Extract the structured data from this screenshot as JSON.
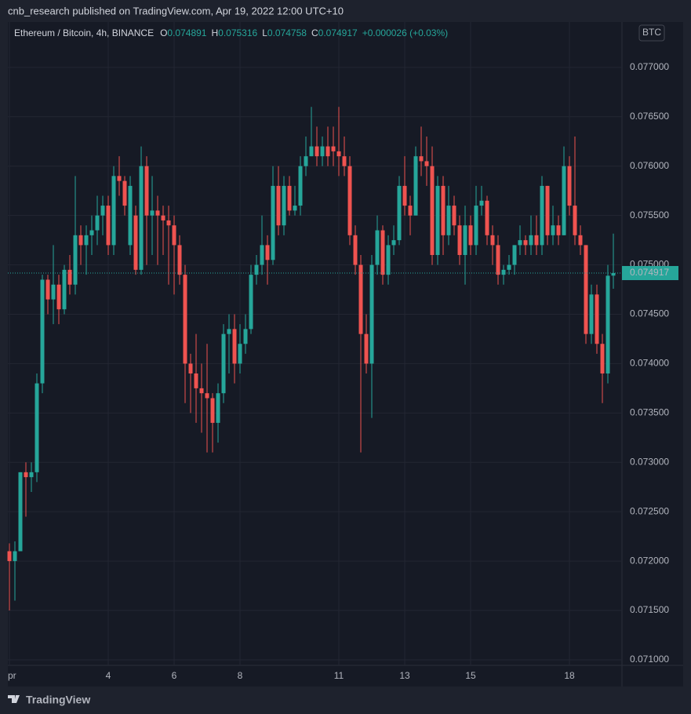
{
  "header": "cnb_research published on TradingView.com, Apr 19, 2022 12:00 UTC+10",
  "footer": "TradingView",
  "chart_data": {
    "type": "candlestick",
    "symbol": "Ethereum / Bitcoin, 4h, BINANCE",
    "legend_keys": [
      "O",
      "H",
      "L",
      "C"
    ],
    "change": "+0.000026 (+0.03%)",
    "currency": "BTC",
    "up_color": "#26a69a",
    "down_color": "#ef5350",
    "grid": true,
    "open": [
      0.0721,
      0.072,
      0.0721,
      0.0729,
      0.07285,
      0.0729,
      0.0738,
      0.07485,
      0.07465,
      0.0748,
      0.07455,
      0.07495,
      0.0748,
      0.0753,
      0.0752,
      0.0753,
      0.07535,
      0.0755,
      0.0756,
      0.0752,
      0.0759,
      0.07585,
      0.0752,
      0.0755,
      0.07495,
      0.076,
      0.0755,
      0.07555,
      0.0755,
      0.07545,
      0.0754,
      0.0752,
      0.0749,
      0.074,
      0.0739,
      0.07375,
      0.0737,
      0.07365,
      0.0734,
      0.0737,
      0.0743,
      0.07435,
      0.074,
      0.0742,
      0.07435,
      0.0749,
      0.075,
      0.0752,
      0.07505,
      0.0758,
      0.0754,
      0.0758,
      0.07555,
      0.0756,
      0.076,
      0.0761,
      0.0762,
      0.0761,
      0.0762,
      0.0762,
      0.07615,
      0.0761,
      0.076,
      0.0753,
      0.075,
      0.0743,
      0.074,
      0.075,
      0.07535,
      0.0749,
      0.0752,
      0.07525,
      0.0758,
      0.0756,
      0.0755,
      0.0761,
      0.07605,
      0.076,
      0.0751,
      0.0758,
      0.0753,
      0.0756,
      0.0754,
      0.0751,
      0.0754,
      0.0752,
      0.0756,
      0.07565,
      0.0753,
      0.0752,
      0.0749,
      0.07495,
      0.075,
      0.0752,
      0.07525,
      0.0752,
      0.0753,
      0.0752,
      0.0758,
      0.0753,
      0.0754,
      0.0753,
      0.076,
      0.0756,
      0.0753,
      0.0752,
      0.0743,
      0.0747,
      0.0742,
      0.0739,
      0.074891
    ],
    "high": [
      0.07218,
      0.0722,
      0.0729,
      0.073,
      0.073,
      0.0739,
      0.0749,
      0.0749,
      0.0752,
      0.0749,
      0.075,
      0.0751,
      0.0759,
      0.0754,
      0.0754,
      0.0755,
      0.0757,
      0.0757,
      0.0757,
      0.076,
      0.0761,
      0.0759,
      0.0759,
      0.0756,
      0.0762,
      0.0761,
      0.0759,
      0.0757,
      0.0756,
      0.0756,
      0.0755,
      0.0753,
      0.075,
      0.0741,
      0.0743,
      0.074,
      0.0742,
      0.0737,
      0.0738,
      0.0744,
      0.0745,
      0.0745,
      0.0744,
      0.0745,
      0.075,
      0.0751,
      0.0755,
      0.0753,
      0.076,
      0.076,
      0.0759,
      0.0759,
      0.0758,
      0.0761,
      0.0763,
      0.0766,
      0.0764,
      0.0763,
      0.0764,
      0.0764,
      0.0766,
      0.0763,
      0.0761,
      0.0754,
      0.0751,
      0.0745,
      0.0751,
      0.0755,
      0.0754,
      0.0753,
      0.0754,
      0.0759,
      0.0761,
      0.0757,
      0.0762,
      0.0764,
      0.0763,
      0.0762,
      0.0759,
      0.0759,
      0.0758,
      0.0757,
      0.0755,
      0.0756,
      0.0755,
      0.0758,
      0.0758,
      0.0757,
      0.0754,
      0.0753,
      0.075,
      0.0751,
      0.0752,
      0.0754,
      0.0753,
      0.0755,
      0.0755,
      0.0759,
      0.0758,
      0.0756,
      0.0755,
      0.0762,
      0.0761,
      0.0763,
      0.0754,
      0.0752,
      0.0748,
      0.0748,
      0.0743,
      0.075,
      0.075316
    ],
    "low": [
      0.0715,
      0.0716,
      0.0721,
      0.07245,
      0.0727,
      0.0728,
      0.0737,
      0.0745,
      0.0744,
      0.0744,
      0.0745,
      0.0747,
      0.0747,
      0.075,
      0.0749,
      0.0751,
      0.0752,
      0.0753,
      0.0751,
      0.0751,
      0.0757,
      0.0755,
      0.0751,
      0.0749,
      0.0749,
      0.075,
      0.0751,
      0.075,
      0.0751,
      0.0748,
      0.0747,
      0.0748,
      0.0736,
      0.0735,
      0.0734,
      0.0733,
      0.0731,
      0.0731,
      0.0732,
      0.0736,
      0.0739,
      0.0738,
      0.0739,
      0.0741,
      0.0743,
      0.0748,
      0.0749,
      0.0748,
      0.075,
      0.0753,
      0.0753,
      0.0755,
      0.0755,
      0.0755,
      0.0759,
      0.0761,
      0.076,
      0.076,
      0.076,
      0.076,
      0.0759,
      0.0759,
      0.0752,
      0.0749,
      0.0731,
      0.0739,
      0.07345,
      0.0749,
      0.0748,
      0.0748,
      0.0751,
      0.0752,
      0.0755,
      0.0753,
      0.0755,
      0.0759,
      0.0758,
      0.075,
      0.075,
      0.0751,
      0.0752,
      0.0753,
      0.075,
      0.0748,
      0.0751,
      0.0751,
      0.0755,
      0.0752,
      0.075,
      0.0748,
      0.0748,
      0.0749,
      0.0749,
      0.0751,
      0.0751,
      0.0751,
      0.0751,
      0.0751,
      0.0752,
      0.0752,
      0.0752,
      0.0753,
      0.0755,
      0.0752,
      0.0751,
      0.0742,
      0.0742,
      0.0741,
      0.0736,
      0.0738,
      0.074758
    ],
    "close": [
      0.072,
      0.0721,
      0.0729,
      0.07285,
      0.0729,
      0.0738,
      0.07485,
      0.07465,
      0.0748,
      0.07455,
      0.07495,
      0.0748,
      0.0753,
      0.0752,
      0.0753,
      0.07535,
      0.0755,
      0.0756,
      0.0752,
      0.0759,
      0.07585,
      0.0756,
      0.0758,
      0.07495,
      0.076,
      0.0755,
      0.07555,
      0.0755,
      0.07545,
      0.0754,
      0.0752,
      0.0749,
      0.074,
      0.0739,
      0.07375,
      0.0737,
      0.07365,
      0.0734,
      0.0737,
      0.0743,
      0.07435,
      0.074,
      0.0742,
      0.07435,
      0.0749,
      0.075,
      0.0752,
      0.07505,
      0.0758,
      0.0754,
      0.0758,
      0.07555,
      0.0756,
      0.076,
      0.0761,
      0.0762,
      0.0761,
      0.0762,
      0.0761,
      0.07615,
      0.0761,
      0.076,
      0.0753,
      0.075,
      0.0743,
      0.074,
      0.075,
      0.07535,
      0.0749,
      0.0752,
      0.07525,
      0.0758,
      0.0756,
      0.0755,
      0.0761,
      0.07605,
      0.076,
      0.0751,
      0.0758,
      0.0753,
      0.0756,
      0.0754,
      0.0751,
      0.0754,
      0.0752,
      0.0756,
      0.07565,
      0.0753,
      0.0752,
      0.0749,
      0.07495,
      0.075,
      0.0752,
      0.07525,
      0.0752,
      0.0753,
      0.0752,
      0.0758,
      0.0753,
      0.0754,
      0.0753,
      0.076,
      0.0756,
      0.0753,
      0.0752,
      0.0743,
      0.0747,
      0.0742,
      0.0739,
      0.07489,
      0.074917
    ],
    "xticks": [
      {
        "value": 0,
        "label": "pr"
      },
      {
        "value": 18,
        "label": "4"
      },
      {
        "value": 30,
        "label": "6"
      },
      {
        "value": 42,
        "label": "8"
      },
      {
        "value": 60,
        "label": "11"
      },
      {
        "value": 72,
        "label": "13"
      },
      {
        "value": 84,
        "label": "15"
      },
      {
        "value": 102,
        "label": "18"
      }
    ],
    "ylim": [
      0.070944,
      0.07746
    ],
    "yticks": [
      {
        "value": 0.071,
        "label": "0.071000"
      },
      {
        "value": 0.0715,
        "label": "0.071500"
      },
      {
        "value": 0.072,
        "label": "0.072000"
      },
      {
        "value": 0.0725,
        "label": "0.072500"
      },
      {
        "value": 0.073,
        "label": "0.073000"
      },
      {
        "value": 0.0735,
        "label": "0.073500"
      },
      {
        "value": 0.074,
        "label": "0.074000"
      },
      {
        "value": 0.0745,
        "label": "0.074500"
      },
      {
        "value": 0.075,
        "label": "0.075000"
      },
      {
        "value": 0.0755,
        "label": "0.075500"
      },
      {
        "value": 0.076,
        "label": "0.076000"
      },
      {
        "value": 0.0765,
        "label": "0.076500"
      },
      {
        "value": 0.077,
        "label": "0.077000"
      }
    ]
  }
}
